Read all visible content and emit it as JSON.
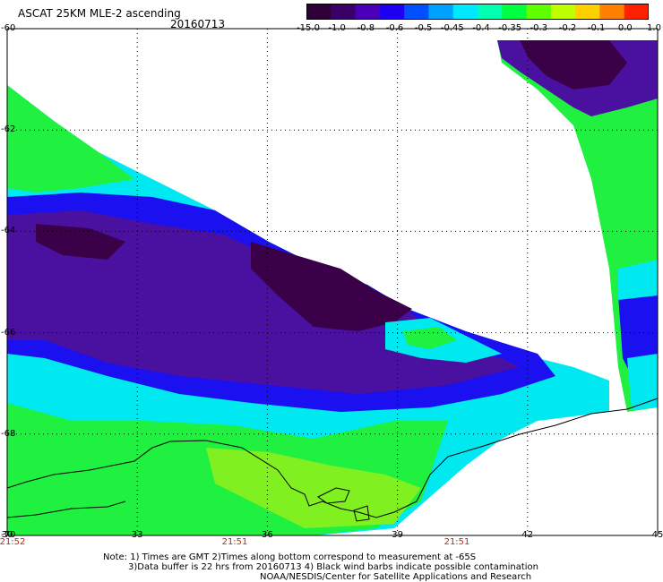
{
  "title": "ASCAT 25KM MLE-2 ascending",
  "date": "20160713",
  "colorbar": {
    "labels": [
      "-15.0",
      "-1.0",
      "-0.8",
      "-0.6",
      "-0.5",
      "-0.45",
      "-0.4",
      "-0.35",
      "-0.3",
      "-0.2",
      "-0.1",
      "0.0",
      "1.0"
    ],
    "colors": [
      "#2e0038",
      "#3a0068",
      "#4a00b8",
      "#1e00f0",
      "#0050ff",
      "#00a0ff",
      "#00e8ff",
      "#00ffb0",
      "#00ff40",
      "#60ff00",
      "#c0ff00",
      "#ffd000",
      "#ff8000",
      "#ff2000"
    ]
  },
  "axes": {
    "lat_labels": [
      "-60",
      "-62",
      "-64",
      "-66",
      "-68",
      "-70"
    ],
    "lon_labels": [
      "30",
      "33",
      "36",
      "39",
      "42",
      "45"
    ],
    "time_labels": [
      "21:52",
      "21:51",
      "21:51"
    ]
  },
  "colors": {
    "dark_purple": "#3a0048",
    "purple": "#4a10a0",
    "blue": "#1a10f0",
    "cyan": "#00e8f0",
    "green": "#20f040",
    "lime": "#80f020",
    "time_red": "#cc2200"
  },
  "notes": {
    "line1": "Note: 1) Times are GMT 2)Times along bottom correspond to measurement at -65S",
    "line2": "3)Data buffer is 22 hrs from 20160713 4) Black wind barbs indicate possible contamination",
    "line3": "NOAA/NESDIS/Center for Satellite Applications and Research"
  }
}
